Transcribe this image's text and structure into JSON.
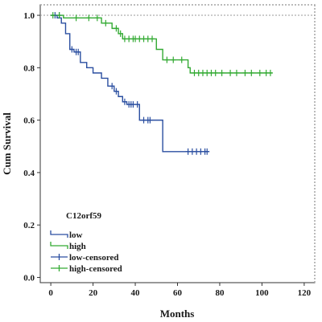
{
  "chart_data": {
    "type": "line",
    "step": true,
    "xlabel": "Months",
    "ylabel": "Cum Survival",
    "xlim": [
      -5,
      125
    ],
    "ylim": [
      -0.02,
      1.04
    ],
    "xticks": [
      "0",
      "20",
      "40",
      "60",
      "80",
      "100",
      "120"
    ],
    "yticks": [
      "0.0",
      "0.2",
      "0.4",
      "0.6",
      "0.8",
      "1.0"
    ],
    "xtick_values": [
      0,
      20,
      40,
      60,
      80,
      100,
      120
    ],
    "ytick_values": [
      0.0,
      0.2,
      0.4,
      0.6,
      0.8,
      1.0
    ],
    "grid": "dashed horizontal reference line at 1.0 and dashed right border",
    "legend": {
      "title": "C12orf59",
      "placement": "lower-left",
      "entries": [
        "low",
        "high",
        "low-censored",
        "high-censored"
      ]
    },
    "series": [
      {
        "name": "low",
        "color": "#2a4ea0",
        "x": [
          0,
          3,
          5,
          7,
          9,
          11,
          14,
          17,
          20,
          24,
          27,
          30,
          32,
          34,
          36,
          38,
          42,
          53,
          75
        ],
        "y": [
          1.0,
          0.99,
          0.97,
          0.93,
          0.87,
          0.86,
          0.82,
          0.8,
          0.78,
          0.76,
          0.73,
          0.71,
          0.69,
          0.67,
          0.66,
          0.66,
          0.6,
          0.48,
          0.48
        ]
      },
      {
        "name": "high",
        "color": "#33aa33",
        "x": [
          0,
          6,
          21,
          24,
          29,
          32,
          34,
          50,
          53,
          65,
          66,
          105
        ],
        "y": [
          1.0,
          0.99,
          0.99,
          0.97,
          0.95,
          0.93,
          0.91,
          0.87,
          0.83,
          0.8,
          0.78,
          0.78
        ]
      },
      {
        "name": "low-censored",
        "color": "#2a4ea0",
        "x": [
          2,
          4,
          10,
          12,
          13,
          29,
          31,
          35,
          37,
          38,
          39,
          41,
          44,
          46,
          47,
          65,
          67,
          69,
          71,
          73,
          74
        ],
        "y": [
          1.0,
          1.0,
          0.87,
          0.86,
          0.86,
          0.73,
          0.71,
          0.67,
          0.66,
          0.66,
          0.66,
          0.66,
          0.6,
          0.6,
          0.6,
          0.48,
          0.48,
          0.48,
          0.48,
          0.48,
          0.48
        ]
      },
      {
        "name": "high-censored",
        "color": "#33aa33",
        "x": [
          1,
          4,
          12,
          18,
          22,
          26,
          31,
          33,
          35,
          37,
          39,
          40,
          42,
          44,
          46,
          48,
          55,
          58,
          62,
          68,
          70,
          72,
          74,
          76,
          78,
          81,
          85,
          88,
          92,
          95,
          99,
          102,
          104
        ],
        "y": [
          1.0,
          1.0,
          0.99,
          0.99,
          0.99,
          0.97,
          0.95,
          0.93,
          0.91,
          0.91,
          0.91,
          0.91,
          0.91,
          0.91,
          0.91,
          0.91,
          0.83,
          0.83,
          0.83,
          0.78,
          0.78,
          0.78,
          0.78,
          0.78,
          0.78,
          0.78,
          0.78,
          0.78,
          0.78,
          0.78,
          0.78,
          0.78,
          0.78
        ]
      }
    ]
  }
}
